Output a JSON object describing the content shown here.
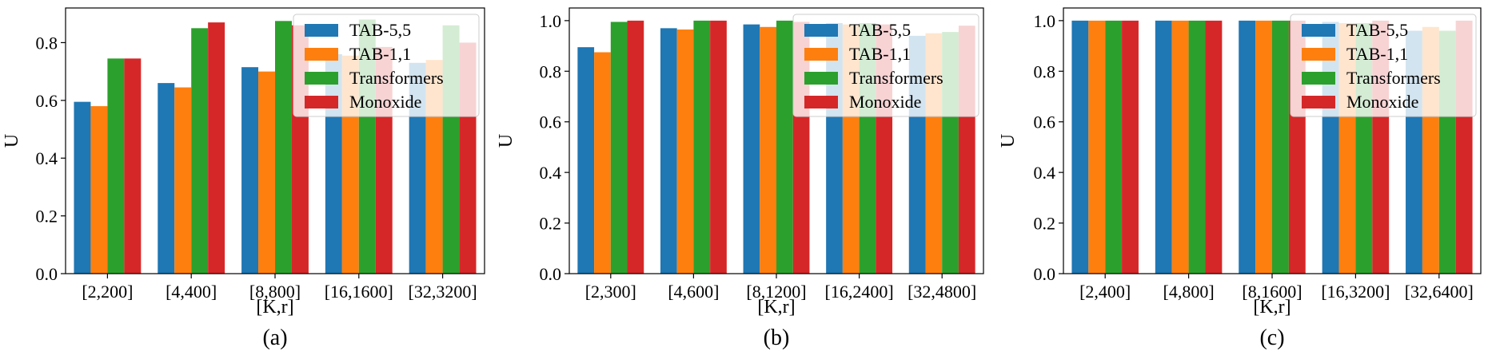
{
  "colors": {
    "TAB-5,5": "#1f77b4",
    "TAB-1,1": "#ff7f0e",
    "Transformers": "#2ca02c",
    "Monoxide": "#d62728"
  },
  "chart_data": [
    {
      "type": "bar",
      "caption": "(a)",
      "xlabel": "[K,r]",
      "ylabel": "U",
      "ylim": [
        0,
        0.92
      ],
      "yticks": [
        "0.0",
        "0.2",
        "0.4",
        "0.6",
        "0.8"
      ],
      "legend_position": "top-right",
      "categories": [
        "[2,200]",
        "[4,400]",
        "[8,800]",
        "[16,1600]",
        "[32,3200]"
      ],
      "series": [
        {
          "name": "TAB-5,5",
          "values": [
            0.595,
            0.66,
            0.715,
            0.76,
            0.73
          ]
        },
        {
          "name": "TAB-1,1",
          "values": [
            0.58,
            0.645,
            0.7,
            0.755,
            0.74
          ]
        },
        {
          "name": "Transformers",
          "values": [
            0.745,
            0.85,
            0.875,
            0.88,
            0.86
          ]
        },
        {
          "name": "Monoxide",
          "values": [
            0.745,
            0.87,
            0.86,
            0.785,
            0.8
          ]
        }
      ]
    },
    {
      "type": "bar",
      "caption": "(b)",
      "xlabel": "[K,r]",
      "ylabel": "U",
      "ylim": [
        0,
        1.05
      ],
      "yticks": [
        "0.0",
        "0.2",
        "0.4",
        "0.6",
        "0.8",
        "1.0"
      ],
      "legend_position": "top-right",
      "categories": [
        "[2,300]",
        "[4,600]",
        "[8,1200]",
        "[16,2400]",
        "[32,4800]"
      ],
      "series": [
        {
          "name": "TAB-5,5",
          "values": [
            0.895,
            0.97,
            0.985,
            0.99,
            0.94
          ]
        },
        {
          "name": "TAB-1,1",
          "values": [
            0.875,
            0.965,
            0.975,
            0.985,
            0.95
          ]
        },
        {
          "name": "Transformers",
          "values": [
            0.995,
            1.0,
            1.0,
            0.99,
            0.955
          ]
        },
        {
          "name": "Monoxide",
          "values": [
            1.0,
            1.0,
            0.995,
            0.985,
            0.98
          ]
        }
      ]
    },
    {
      "type": "bar",
      "caption": "(c)",
      "xlabel": "[K,r]",
      "ylabel": "U",
      "ylim": [
        0,
        1.05
      ],
      "yticks": [
        "0.0",
        "0.2",
        "0.4",
        "0.6",
        "0.8",
        "1.0"
      ],
      "legend_position": "top-right",
      "categories": [
        "[2,400]",
        "[4,800]",
        "[8,1600]",
        "[16,3200]",
        "[32,6400]"
      ],
      "series": [
        {
          "name": "TAB-5,5",
          "values": [
            1.0,
            1.0,
            1.0,
            0.995,
            0.96
          ]
        },
        {
          "name": "TAB-1,1",
          "values": [
            1.0,
            1.0,
            1.0,
            0.99,
            0.975
          ]
        },
        {
          "name": "Transformers",
          "values": [
            1.0,
            1.0,
            1.0,
            0.99,
            0.96
          ]
        },
        {
          "name": "Monoxide",
          "values": [
            1.0,
            1.0,
            1.0,
            1.0,
            1.0
          ]
        }
      ]
    }
  ]
}
